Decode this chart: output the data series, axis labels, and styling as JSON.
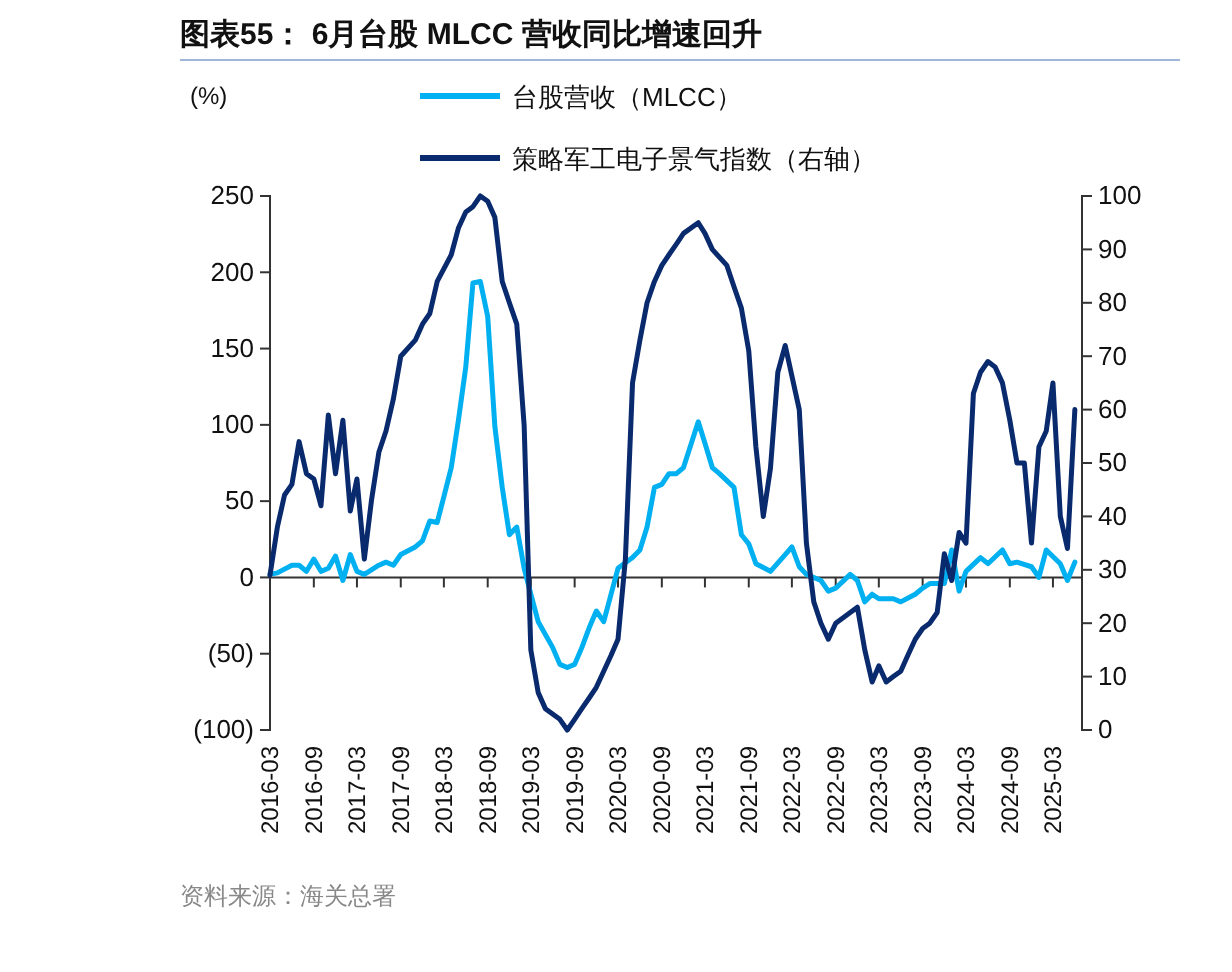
{
  "chart_data": {
    "type": "line",
    "title": "图表55： 6月台股 MLCC 营收同比增速回升",
    "ylabel": "(%)",
    "legend": "top",
    "grid": false,
    "marker": "none",
    "line_style": "solid",
    "xlim": [
      "2016-03",
      "2025-07"
    ],
    "xticks": [
      "2016-03",
      "2016-09",
      "2017-03",
      "2017-09",
      "2018-03",
      "2018-09",
      "2019-03",
      "2019-09",
      "2020-03",
      "2020-09",
      "2021-03",
      "2021-09",
      "2022-03",
      "2022-09",
      "2023-03",
      "2023-09",
      "2024-03",
      "2024-09",
      "2025-03"
    ],
    "ylim": [
      -100,
      250
    ],
    "yticks": [
      {
        "value": -100,
        "label": "(100)"
      },
      {
        "value": -50,
        "label": "(50)"
      },
      0,
      50,
      100,
      150,
      200,
      250
    ],
    "y2lim": [
      0,
      100
    ],
    "y2ticks": [
      0,
      10,
      20,
      30,
      40,
      50,
      60,
      70,
      80,
      90,
      100
    ],
    "series": [
      {
        "name": "台股营收（MLCC）",
        "color": "#00b0f0",
        "x": [
          "2016-03",
          "2016-04",
          "2016-06",
          "2016-07",
          "2016-08",
          "2016-09",
          "2016-10",
          "2016-11",
          "2016-12",
          "2017-01",
          "2017-02",
          "2017-03",
          "2017-04",
          "2017-06",
          "2017-07",
          "2017-08",
          "2017-09",
          "2017-11",
          "2017-12",
          "2018-01",
          "2018-02",
          "2018-03",
          "2018-04",
          "2018-05",
          "2018-06",
          "2018-07",
          "2018-08",
          "2018-09",
          "2018-10",
          "2018-11",
          "2018-12",
          "2019-01",
          "2019-02",
          "2019-03",
          "2019-04",
          "2019-06",
          "2019-07",
          "2019-08",
          "2019-09",
          "2019-10",
          "2019-11",
          "2019-12",
          "2020-01",
          "2020-02",
          "2020-03",
          "2020-05",
          "2020-06",
          "2020-07",
          "2020-08",
          "2020-09",
          "2020-10",
          "2020-11",
          "2020-12",
          "2021-02",
          "2021-03",
          "2021-04",
          "2021-05",
          "2021-07",
          "2021-08",
          "2021-09",
          "2021-10",
          "2021-12",
          "2022-02",
          "2022-03",
          "2022-04",
          "2022-05",
          "2022-07",
          "2022-08",
          "2022-09",
          "2022-11",
          "2022-12",
          "2023-01",
          "2023-02",
          "2023-03",
          "2023-05",
          "2023-06",
          "2023-08",
          "2023-09",
          "2023-10",
          "2023-12",
          "2024-01",
          "2024-02",
          "2024-03",
          "2024-05",
          "2024-06",
          "2024-08",
          "2024-09",
          "2024-10",
          "2024-12",
          "2025-01",
          "2025-02",
          "2025-04",
          "2025-05",
          "2025-06"
        ],
        "values": [
          2,
          3,
          8,
          8,
          4,
          12,
          4,
          6,
          14,
          -2,
          15,
          4,
          2,
          8,
          10,
          8,
          15,
          20,
          24,
          37,
          36,
          53,
          72,
          103,
          138,
          193,
          194,
          171,
          99,
          59,
          28,
          33,
          6,
          -11,
          -29,
          -46,
          -57,
          -59,
          -57,
          -46,
          -33,
          -22,
          -29,
          -11,
          6,
          13,
          18,
          33,
          59,
          61,
          68,
          68,
          72,
          102,
          88,
          72,
          68,
          59,
          28,
          22,
          9,
          4,
          15,
          20,
          7,
          2,
          -2,
          -9,
          -7,
          2,
          -2,
          -16,
          -11,
          -14,
          -14,
          -16,
          -11,
          -7,
          -4,
          -4,
          18,
          -9,
          4,
          13,
          9,
          18,
          9,
          10,
          7,
          0,
          18,
          9,
          -2,
          10
        ]
      },
      {
        "name": "策略军工电子景气指数（右轴）",
        "color": "#0a2a6e",
        "axis": "y2",
        "x": [
          "2016-03",
          "2016-04",
          "2016-05",
          "2016-06",
          "2016-07",
          "2016-08",
          "2016-09",
          "2016-10",
          "2016-11",
          "2016-12",
          "2017-01",
          "2017-02",
          "2017-03",
          "2017-04",
          "2017-05",
          "2017-06",
          "2017-07",
          "2017-08",
          "2017-09",
          "2017-11",
          "2017-12",
          "2018-01",
          "2018-02",
          "2018-04",
          "2018-05",
          "2018-06",
          "2018-07",
          "2018-08",
          "2018-09",
          "2018-10",
          "2018-11",
          "2018-12",
          "2019-01",
          "2019-02",
          "2019-03",
          "2019-04",
          "2019-05",
          "2019-07",
          "2019-08",
          "2019-09",
          "2019-10",
          "2019-11",
          "2019-12",
          "2020-01",
          "2020-02",
          "2020-03",
          "2020-04",
          "2020-05",
          "2020-06",
          "2020-07",
          "2020-08",
          "2020-09",
          "2020-10",
          "2020-11",
          "2020-12",
          "2021-02",
          "2021-03",
          "2021-04",
          "2021-06",
          "2021-07",
          "2021-08",
          "2021-09",
          "2021-10",
          "2021-11",
          "2021-12",
          "2022-01",
          "2022-02",
          "2022-04",
          "2022-05",
          "2022-06",
          "2022-07",
          "2022-08",
          "2022-09",
          "2022-11",
          "2022-12",
          "2023-01",
          "2023-02",
          "2023-03",
          "2023-04",
          "2023-05",
          "2023-06",
          "2023-07",
          "2023-08",
          "2023-09",
          "2023-10",
          "2023-11",
          "2023-12",
          "2024-01",
          "2024-02",
          "2024-03",
          "2024-04",
          "2024-05",
          "2024-06",
          "2024-07",
          "2024-08",
          "2024-09",
          "2024-10",
          "2024-11",
          "2024-12",
          "2025-01",
          "2025-02",
          "2025-03",
          "2025-04",
          "2025-05",
          "2025-06"
        ],
        "values": [
          29,
          38,
          44,
          46,
          54,
          48,
          47,
          42,
          59,
          48,
          58,
          41,
          47,
          32,
          43,
          52,
          56,
          62,
          70,
          73,
          76,
          78,
          84,
          89,
          94,
          97,
          98,
          100,
          99,
          96,
          84,
          80,
          76,
          57,
          15,
          7,
          4,
          2,
          0,
          2,
          4,
          6,
          8,
          11,
          14,
          17,
          32,
          65,
          73,
          80,
          84,
          87,
          89,
          91,
          93,
          95,
          93,
          90,
          87,
          83,
          79,
          71,
          53,
          40,
          49,
          67,
          72,
          60,
          35,
          24,
          20,
          17,
          20,
          22,
          23,
          15,
          9,
          12,
          9,
          10,
          11,
          14,
          17,
          19,
          20,
          22,
          33,
          28,
          37,
          35,
          63,
          67,
          69,
          68,
          65,
          58,
          50,
          50,
          35,
          53,
          56,
          65,
          40,
          34,
          60
        ]
      }
    ],
    "annotations": [
      "资料来源：海关总署"
    ]
  }
}
